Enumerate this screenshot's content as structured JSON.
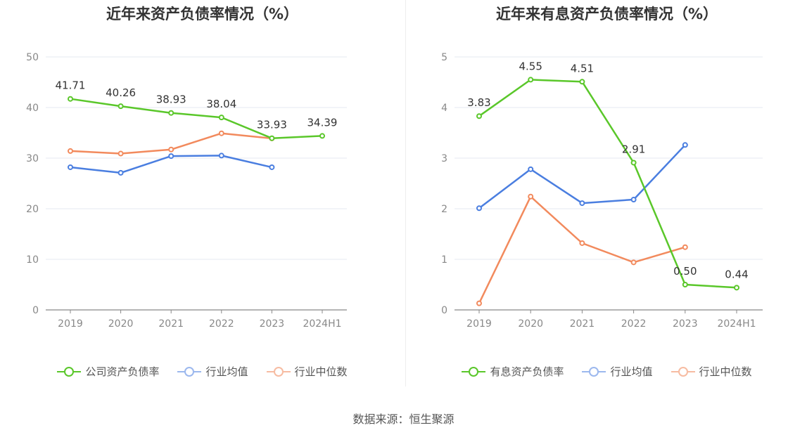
{
  "source_text": "数据来源：恒生聚源",
  "colors": {
    "company": "#5ac72a",
    "avg": "#4a7ee0",
    "median": "#f28a5d"
  },
  "chart_data": [
    {
      "type": "line",
      "title": "近年来资产负债率情况（%）",
      "categories": [
        "2019",
        "2020",
        "2021",
        "2022",
        "2023",
        "2024H1"
      ],
      "yticks": [
        "0",
        "10",
        "20",
        "30",
        "40",
        "50"
      ],
      "ylim": [
        0,
        50
      ],
      "grid": true,
      "legend_position": "bottom",
      "series": [
        {
          "name": "公司资产负债率",
          "color_key": "company",
          "values": [
            41.71,
            40.26,
            38.93,
            38.04,
            33.93,
            34.39
          ],
          "labels": [
            "41.71",
            "40.26",
            "38.93",
            "38.04",
            "33.93",
            "34.39"
          ]
        },
        {
          "name": "行业均值",
          "color_key": "avg",
          "values": [
            28.2,
            27.1,
            30.4,
            30.5,
            28.2,
            null
          ]
        },
        {
          "name": "行业中位数",
          "color_key": "median",
          "values": [
            31.4,
            30.9,
            31.7,
            34.9,
            33.9,
            null
          ]
        }
      ]
    },
    {
      "type": "line",
      "title": "近年来有息资产负债率情况（%）",
      "categories": [
        "2019",
        "2020",
        "2021",
        "2022",
        "2023",
        "2024H1"
      ],
      "yticks": [
        "0",
        "1",
        "2",
        "3",
        "4",
        "5"
      ],
      "ylim": [
        0,
        5
      ],
      "grid": true,
      "legend_position": "bottom",
      "series": [
        {
          "name": "有息资产负债率",
          "color_key": "company",
          "values": [
            3.83,
            4.55,
            4.51,
            2.91,
            0.5,
            0.44
          ],
          "labels": [
            "3.83",
            "4.55",
            "4.51",
            "2.91",
            "0.50",
            "0.44"
          ]
        },
        {
          "name": "行业均值",
          "color_key": "avg",
          "values": [
            2.01,
            2.78,
            2.11,
            2.18,
            3.26,
            null
          ]
        },
        {
          "name": "行业中位数",
          "color_key": "median",
          "values": [
            0.13,
            2.24,
            1.32,
            0.94,
            1.24,
            null
          ]
        }
      ]
    }
  ]
}
